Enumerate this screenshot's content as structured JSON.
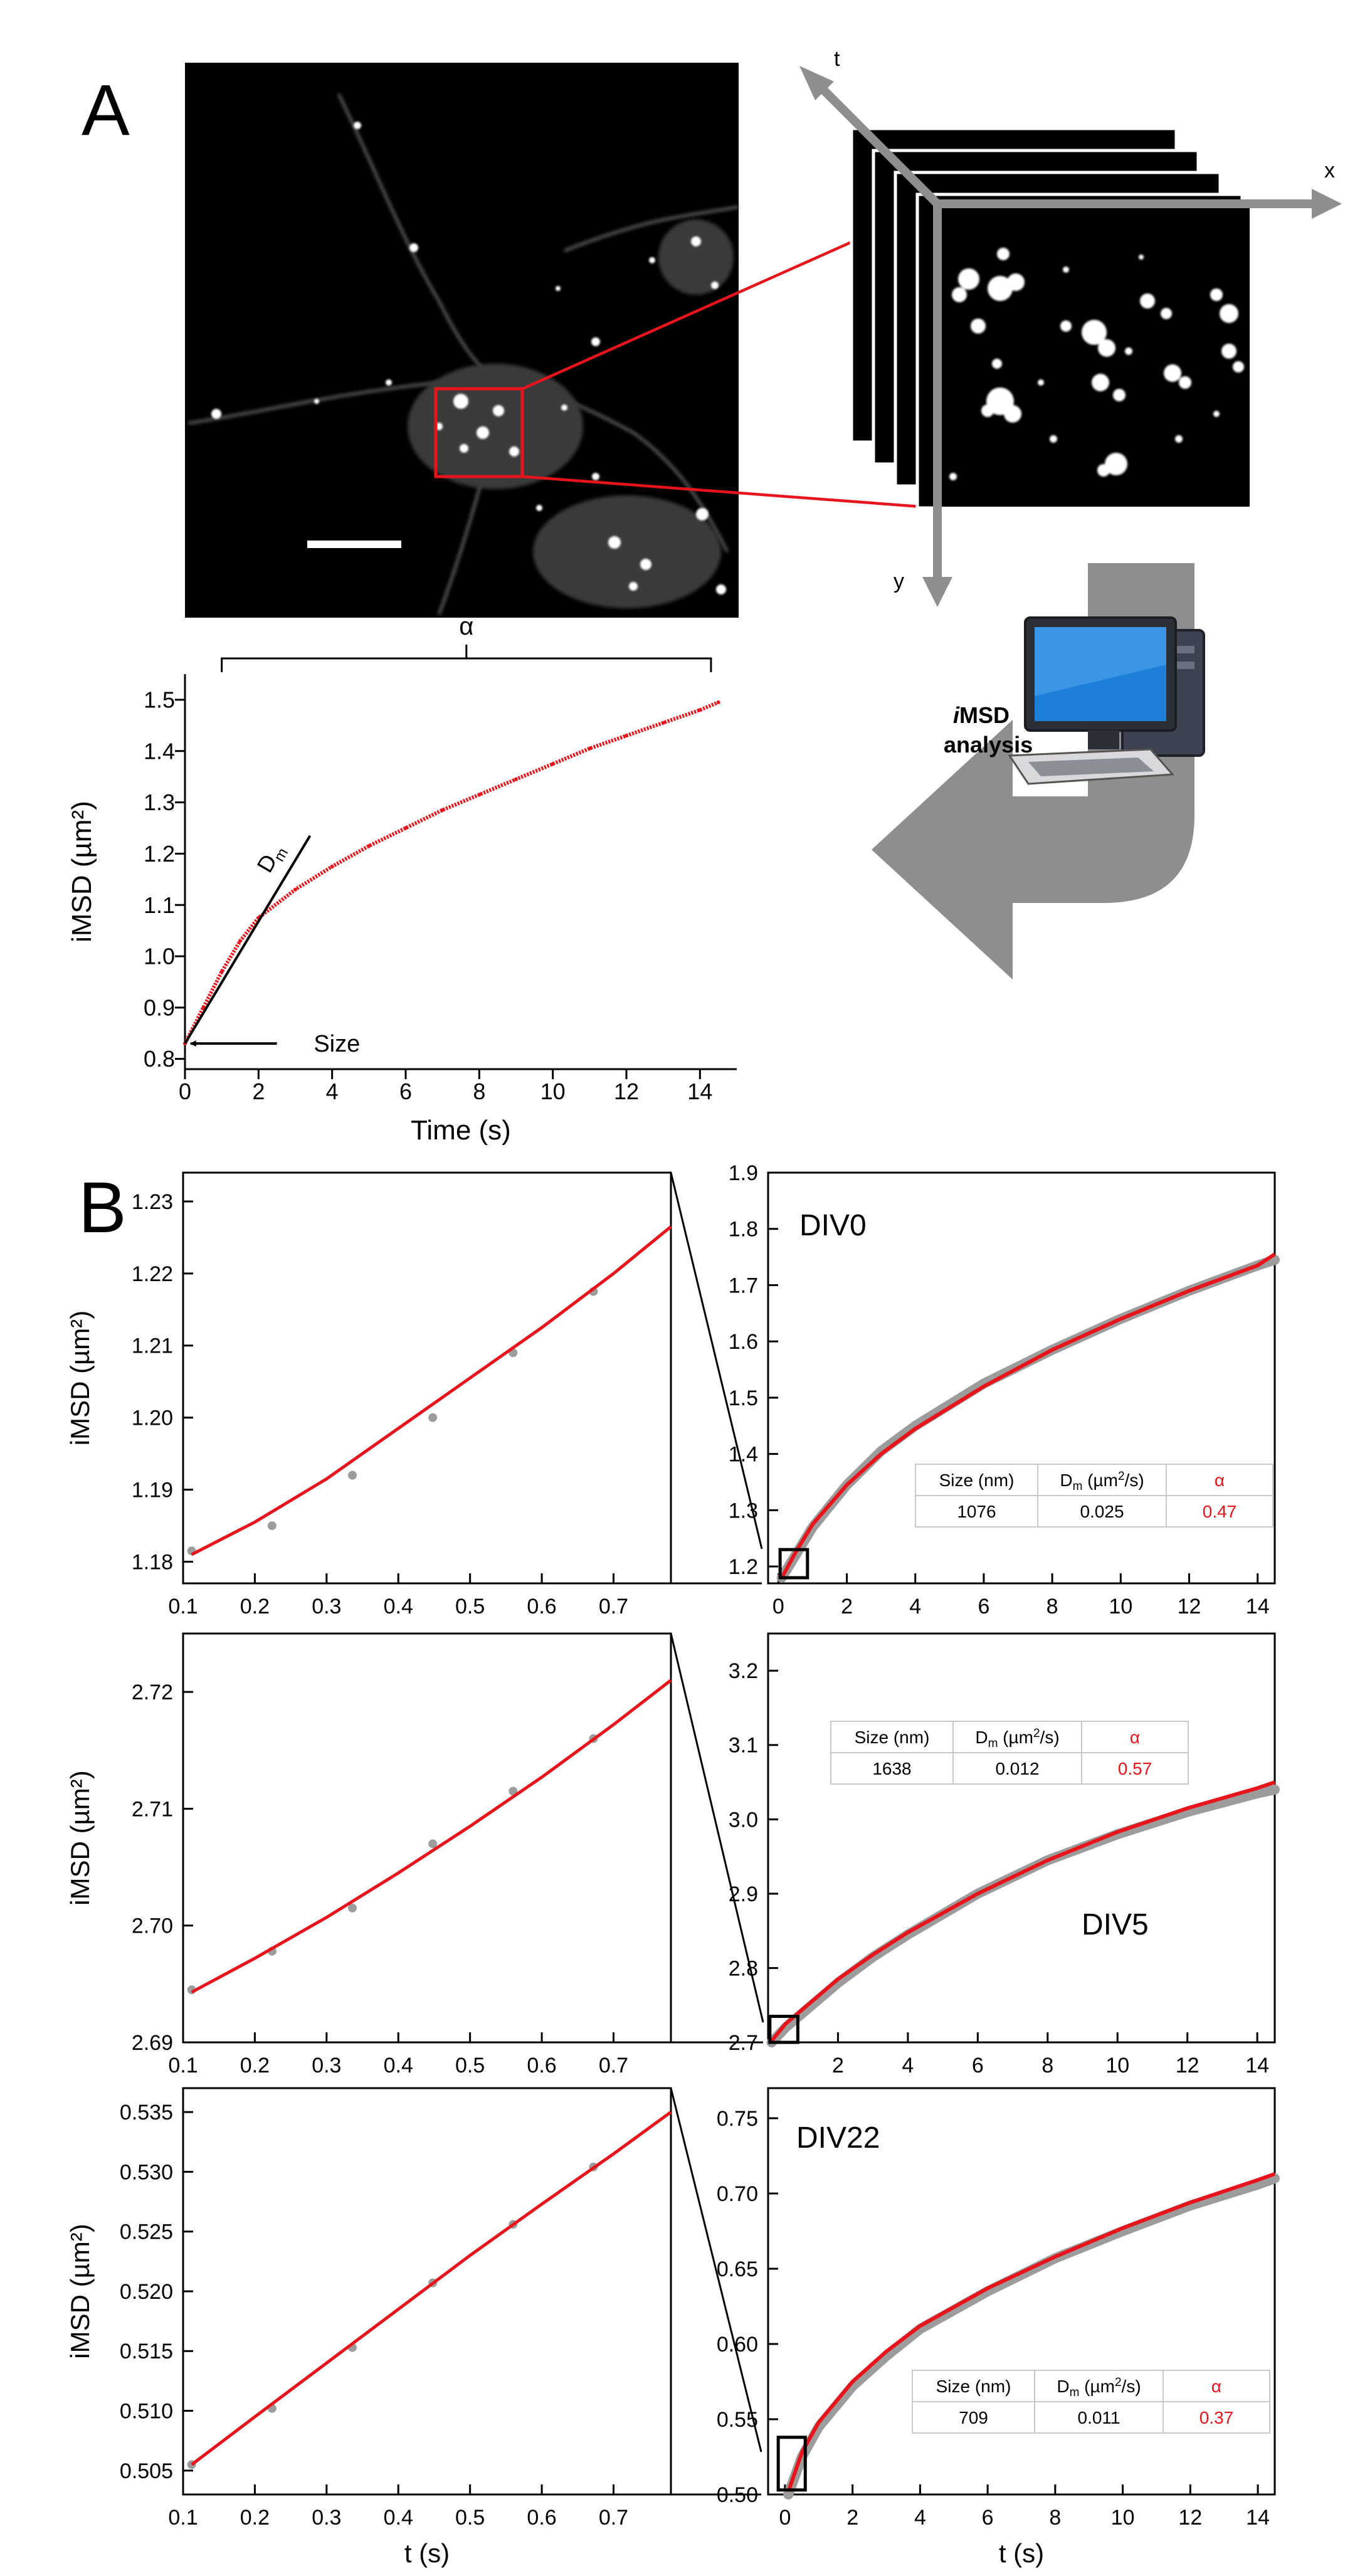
{
  "panel_labels": {
    "a": "A",
    "b": "B"
  },
  "stack": {
    "axis_t": "t",
    "axis_x": "x",
    "axis_y": "y"
  },
  "computer": {
    "label_line1_italic": "i",
    "label_line1_rest": "MSD",
    "label_line2": "analysis"
  },
  "colors": {
    "fit": "#e8141b",
    "data": "#9c9c9c",
    "axis": "#000000",
    "arrow": "#8e8e8e",
    "roi": "#e8141b",
    "table_alpha": "#e8141b"
  },
  "chart_data": [
    {
      "id": "A",
      "type": "line",
      "xlabel": "Time (s)",
      "ylabel": "iMSD (µm²)",
      "xlim": [
        0,
        15
      ],
      "ylim": [
        0.78,
        1.55
      ],
      "xticks": [
        0,
        2,
        4,
        6,
        8,
        10,
        12,
        14
      ],
      "yticks": [
        0.8,
        0.9,
        1.0,
        1.1,
        1.2,
        1.3,
        1.4,
        1.5
      ],
      "ytick_labels": [
        "0.8",
        "0.9",
        "1.0",
        "1.1",
        "1.2",
        "1.3",
        "1.4",
        "1.5"
      ],
      "series": [
        {
          "x": [
            0,
            0.5,
            1,
            1.5,
            2,
            3,
            4,
            5,
            6,
            7,
            8,
            9,
            10,
            11,
            12,
            13,
            14,
            14.5
          ],
          "y": [
            0.83,
            0.9,
            0.97,
            1.03,
            1.075,
            1.13,
            1.175,
            1.215,
            1.25,
            1.285,
            1.315,
            1.345,
            1.375,
            1.405,
            1.43,
            1.455,
            1.48,
            1.495
          ]
        }
      ],
      "annotations": {
        "alpha": "α",
        "dm": "D",
        "dm_sub": "m",
        "size": "Size"
      }
    },
    {
      "id": "B1-zoom",
      "type": "scatter",
      "ylabel": "iMSD (µm²)",
      "xlim": [
        0.1,
        0.78
      ],
      "ylim": [
        1.177,
        1.234
      ],
      "xticks": [
        0.1,
        0.2,
        0.3,
        0.4,
        0.5,
        0.6,
        0.7
      ],
      "yticks": [
        1.18,
        1.19,
        1.2,
        1.21,
        1.22,
        1.23
      ],
      "ytick_labels": [
        "1.18",
        "1.19",
        "1.20",
        "1.21",
        "1.22",
        "1.23"
      ],
      "points": {
        "x": [
          0.112,
          0.224,
          0.336,
          0.448,
          0.56,
          0.672
        ],
        "y": [
          1.1815,
          1.185,
          1.192,
          1.2,
          1.209,
          1.2175
        ]
      },
      "fit": {
        "x": [
          0.112,
          0.2,
          0.3,
          0.4,
          0.5,
          0.6,
          0.7,
          0.78
        ],
        "y": [
          1.181,
          1.1855,
          1.1915,
          1.1985,
          1.2055,
          1.2125,
          1.22,
          1.2265
        ]
      }
    },
    {
      "id": "B1-full",
      "type": "line",
      "label": "DIV0",
      "xlim": [
        -0.3,
        14.5
      ],
      "ylim": [
        1.17,
        1.9
      ],
      "xticks": [
        0,
        2,
        4,
        6,
        8,
        10,
        12,
        14
      ],
      "yticks": [
        1.2,
        1.3,
        1.4,
        1.5,
        1.6,
        1.7,
        1.8,
        1.9
      ],
      "ytick_labels": [
        "1.2",
        "1.3",
        "1.4",
        "1.5",
        "1.6",
        "1.7",
        "1.8",
        "1.9"
      ],
      "data": {
        "x": [
          0.1,
          0.5,
          1,
          2,
          3,
          4,
          6,
          8,
          10,
          12,
          14,
          14.5
        ],
        "y": [
          1.18,
          1.22,
          1.27,
          1.345,
          1.405,
          1.45,
          1.525,
          1.585,
          1.64,
          1.69,
          1.735,
          1.745
        ]
      },
      "fit": {
        "x": [
          0.1,
          0.5,
          1,
          2,
          3,
          4,
          6,
          8,
          10,
          12,
          14,
          14.5
        ],
        "y": [
          1.18,
          1.225,
          1.275,
          1.345,
          1.4,
          1.445,
          1.52,
          1.585,
          1.64,
          1.69,
          1.735,
          1.755
        ]
      },
      "table": {
        "headers": [
          "Size (nm)",
          "D",
          "α"
        ],
        "values": [
          "1076",
          "0.025",
          "0.47"
        ]
      }
    },
    {
      "id": "B2-zoom",
      "type": "scatter",
      "ylabel": "iMSD (µm²)",
      "xlim": [
        0.1,
        0.78
      ],
      "ylim": [
        2.69,
        2.725
      ],
      "xticks": [
        0.1,
        0.2,
        0.3,
        0.4,
        0.5,
        0.6,
        0.7
      ],
      "yticks": [
        2.69,
        2.7,
        2.71,
        2.72
      ],
      "ytick_labels": [
        "2.69",
        "2.70",
        "2.71",
        "2.72"
      ],
      "points": {
        "x": [
          0.112,
          0.224,
          0.336,
          0.448,
          0.56,
          0.672
        ],
        "y": [
          2.6945,
          2.6978,
          2.7015,
          2.707,
          2.7115,
          2.716
        ]
      },
      "fit": {
        "x": [
          0.112,
          0.2,
          0.3,
          0.4,
          0.5,
          0.6,
          0.7,
          0.78
        ],
        "y": [
          2.6943,
          2.6972,
          2.7007,
          2.7045,
          2.7085,
          2.7127,
          2.7172,
          2.721
        ]
      }
    },
    {
      "id": "B2-full",
      "type": "line",
      "label": "DIV5",
      "xlim": [
        0,
        14.5
      ],
      "ylim": [
        2.7,
        3.25
      ],
      "xticks": [
        2,
        4,
        6,
        8,
        10,
        12,
        14
      ],
      "yticks": [
        2.7,
        2.8,
        2.9,
        3.0,
        3.1,
        3.2
      ],
      "ytick_labels": [
        "2.7",
        "2.8",
        "2.9",
        "3.0",
        "3.1",
        "3.2"
      ],
      "data": {
        "x": [
          0.1,
          0.5,
          1,
          2,
          3,
          4,
          6,
          8,
          10,
          12,
          14,
          14.5
        ],
        "y": [
          2.7,
          2.72,
          2.74,
          2.78,
          2.815,
          2.845,
          2.9,
          2.945,
          2.98,
          3.01,
          3.035,
          3.04
        ]
      },
      "fit": {
        "x": [
          0.1,
          0.5,
          1,
          2,
          3,
          4,
          6,
          8,
          10,
          12,
          14,
          14.5
        ],
        "y": [
          2.702,
          2.725,
          2.745,
          2.785,
          2.818,
          2.848,
          2.9,
          2.945,
          2.983,
          3.015,
          3.042,
          3.05
        ]
      },
      "table": {
        "headers": [
          "Size (nm)",
          "D",
          "α"
        ],
        "values": [
          "1638",
          "0.012",
          "0.57"
        ]
      }
    },
    {
      "id": "B3-zoom",
      "type": "scatter",
      "xlabel": "t (s)",
      "ylabel": "iMSD (µm²)",
      "xlim": [
        0.1,
        0.78
      ],
      "ylim": [
        0.503,
        0.537
      ],
      "xticks": [
        0.1,
        0.2,
        0.3,
        0.4,
        0.5,
        0.6,
        0.7
      ],
      "yticks": [
        0.505,
        0.51,
        0.515,
        0.52,
        0.525,
        0.53,
        0.535
      ],
      "ytick_labels": [
        "0.505",
        "0.510",
        "0.515",
        "0.520",
        "0.525",
        "0.530",
        "0.535"
      ],
      "points": {
        "x": [
          0.112,
          0.224,
          0.336,
          0.448,
          0.56,
          0.672
        ],
        "y": [
          0.5055,
          0.5102,
          0.5153,
          0.5207,
          0.5256,
          0.5304
        ]
      },
      "fit": {
        "x": [
          0.112,
          0.2,
          0.3,
          0.4,
          0.5,
          0.6,
          0.7,
          0.78
        ],
        "y": [
          0.5055,
          0.5095,
          0.514,
          0.5185,
          0.523,
          0.5273,
          0.5315,
          0.535
        ]
      }
    },
    {
      "id": "B3-full",
      "type": "line",
      "label": "DIV22",
      "xlabel": "t (s)",
      "xlim": [
        -0.5,
        14.5
      ],
      "ylim": [
        0.5,
        0.77
      ],
      "xticks": [
        0,
        2,
        4,
        6,
        8,
        10,
        12,
        14
      ],
      "yticks": [
        0.5,
        0.55,
        0.6,
        0.65,
        0.7,
        0.75
      ],
      "ytick_labels": [
        "0.50",
        "0.55",
        "0.60",
        "0.65",
        "0.70",
        "0.75"
      ],
      "data": {
        "x": [
          0.1,
          0.5,
          1,
          2,
          3,
          4,
          6,
          8,
          10,
          12,
          14,
          14.5
        ],
        "y": [
          0.5,
          0.525,
          0.545,
          0.572,
          0.592,
          0.61,
          0.635,
          0.657,
          0.675,
          0.692,
          0.706,
          0.71
        ]
      },
      "fit": {
        "x": [
          0.1,
          0.5,
          1,
          2,
          3,
          4,
          6,
          8,
          10,
          12,
          14,
          14.5
        ],
        "y": [
          0.502,
          0.528,
          0.548,
          0.575,
          0.595,
          0.612,
          0.637,
          0.658,
          0.677,
          0.694,
          0.709,
          0.713
        ]
      },
      "table": {
        "headers": [
          "Size (nm)",
          "D",
          "α"
        ],
        "values": [
          "709",
          "0.011",
          "0.37"
        ]
      }
    }
  ]
}
